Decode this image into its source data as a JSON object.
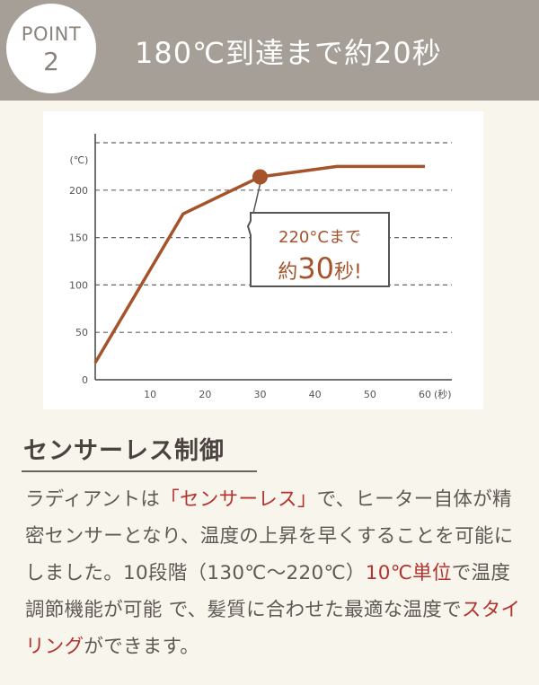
{
  "header": {
    "point_label": "POINT",
    "point_number": "2",
    "title": "180℃到達まで約20秒"
  },
  "chart_data": {
    "type": "line",
    "x": [
      0,
      16,
      30,
      44,
      60
    ],
    "series": [
      {
        "values": [
          18,
          175,
          214,
          225,
          225
        ],
        "color": "#a4532b"
      }
    ],
    "xticks": [
      "10",
      "20",
      "30",
      "40",
      "50",
      "60"
    ],
    "yticks": [
      "0",
      "50",
      "100",
      "150",
      "200"
    ],
    "xunit": "(秒)",
    "yunit": "(℃)",
    "xlim": [
      0,
      60
    ],
    "ylim": [
      0,
      250
    ],
    "grid": "horizontal-dashed",
    "marker": {
      "x": 30,
      "y": 214
    },
    "callout": {
      "line1": "220°Cまで",
      "line2_prefix": "約",
      "line2_number": "30",
      "line2_suffix": "秒!"
    }
  },
  "section": {
    "title": "センサーレス制御",
    "p_1": "ラディアントは",
    "p_2": "「センサーレス」",
    "p_3": "で、ヒーター自体が精密センサーとなり、温度の上昇を早くすることを可能にしました。10段階（130℃〜220℃）",
    "p_4": "10℃単位",
    "p_5": "で温度調節機能が可能 で、髪質に合わせた最適な温度で",
    "p_6": "スタイリング",
    "p_7": "ができます。"
  },
  "colors": {
    "header_bg": "#a59f97",
    "page_bg": "#f8f5ec",
    "line": "#a4532b",
    "highlight": "#b3332f"
  }
}
